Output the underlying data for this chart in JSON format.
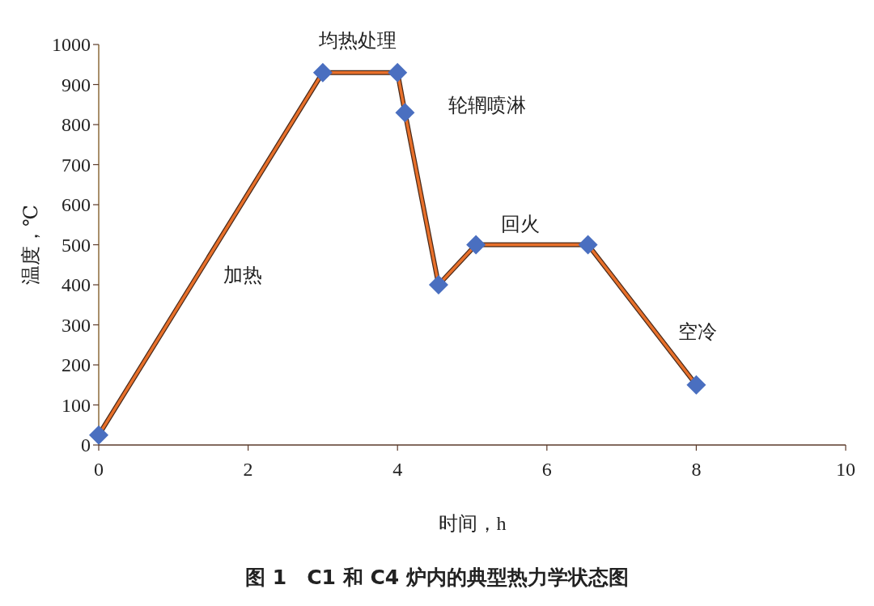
{
  "chart_data": {
    "type": "line",
    "title": "图 1　C1 和 C4 炉内的典型热力学状态图",
    "xlabel": "时间，h",
    "ylabel": "温度，℃",
    "x": [
      0,
      3,
      4,
      4.1,
      4.55,
      5.05,
      6.55,
      8
    ],
    "series": [
      {
        "color": "#e8702a",
        "values": [
          25,
          930,
          930,
          830,
          400,
          500,
          500,
          150
        ]
      }
    ],
    "marker": "diamond",
    "grid": false,
    "xlim": [
      0,
      10
    ],
    "xticks": [
      0,
      2,
      4,
      6,
      8,
      10
    ],
    "ylim": [
      0,
      1000
    ],
    "yticks": [
      0,
      100,
      200,
      300,
      400,
      500,
      600,
      700,
      800,
      900,
      1000
    ],
    "annotations": [
      "加热",
      "均热处理",
      "轮辋喷淋",
      "回火",
      "空冷"
    ]
  }
}
